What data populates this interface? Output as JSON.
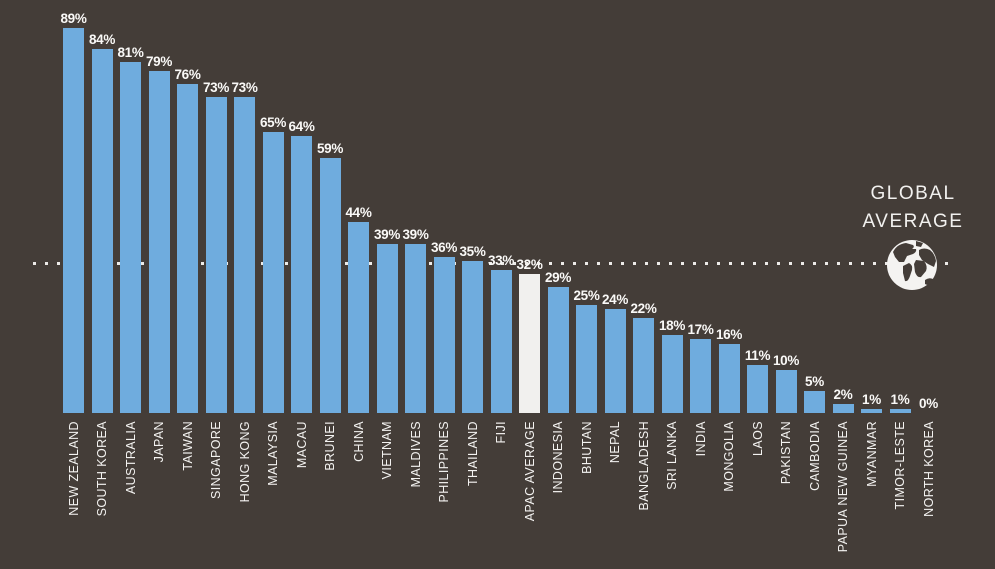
{
  "chart_data": {
    "type": "bar",
    "title": "",
    "xlabel": "",
    "ylabel": "",
    "unit": "%",
    "ylim": [
      0,
      100
    ],
    "grid": false,
    "legend": "none",
    "background_color": "#443d38",
    "bar_color": "#6facde",
    "highlight_color": "#f1f0ee",
    "text_color": "#ffffff",
    "categories": [
      "NEW ZEALAND",
      "SOUTH KOREA",
      "AUSTRALIA",
      "JAPAN",
      "TAIWAN",
      "SINGAPORE",
      "HONG KONG",
      "MALAYSIA",
      "MACAU",
      "BRUNEI",
      "CHINA",
      "VIETNAM",
      "MALDIVES",
      "PHILIPPINES",
      "THAILAND",
      "FIJI",
      "APAC AVERAGE",
      "INDONESIA",
      "BHUTAN",
      "NEPAL",
      "BANGLADESH",
      "SRI LANKA",
      "INDIA",
      "MONGOLIA",
      "LAOS",
      "PAKISTAN",
      "CAMBODIA",
      "PAPUA NEW GUINEA",
      "MYANMAR",
      "TIMOR-LESTE",
      "NORTH KOREA"
    ],
    "values": [
      89,
      84,
      81,
      79,
      76,
      73,
      73,
      65,
      64,
      59,
      44,
      39,
      39,
      36,
      35,
      33,
      32,
      29,
      25,
      24,
      22,
      18,
      17,
      16,
      11,
      10,
      5,
      2,
      1,
      1,
      0
    ],
    "data_labels": [
      "89%",
      "84%",
      "81%",
      "79%",
      "76%",
      "73%",
      "73%",
      "65%",
      "64%",
      "59%",
      "44%",
      "39%",
      "39%",
      "36%",
      "35%",
      "33%",
      "32%",
      "29%",
      "25%",
      "24%",
      "22%",
      "18%",
      "17%",
      "16%",
      "11%",
      "10%",
      "5%",
      "2%",
      "1%",
      "1%",
      "0%"
    ],
    "highlight_category": "APAC AVERAGE",
    "annotations": [
      {
        "type": "reference-line",
        "style": "dotted",
        "value": 35,
        "label": "GLOBAL AVERAGE",
        "icon": "globe-icon"
      }
    ]
  },
  "global_average": {
    "line1": "GLOBAL",
    "line2": "AVERAGE"
  }
}
